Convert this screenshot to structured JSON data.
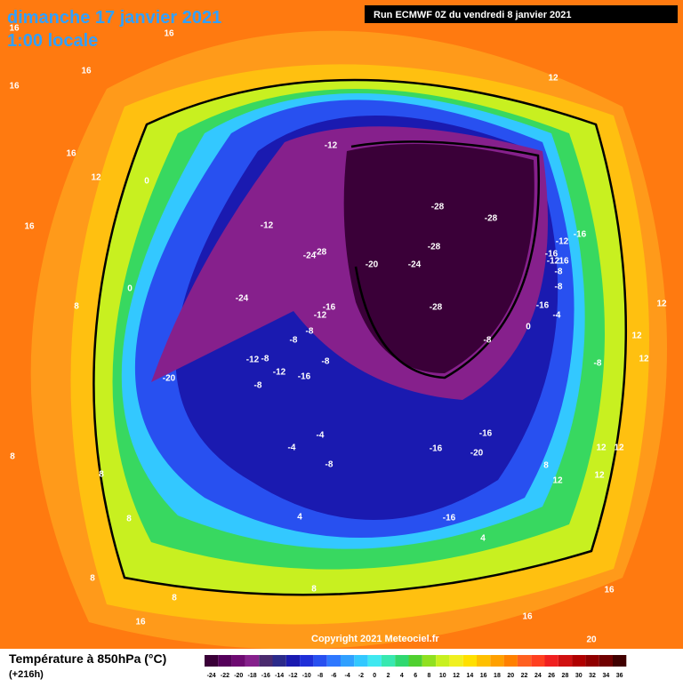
{
  "header": {
    "title": "dimanche 17 janvier 2021",
    "time": "1:00 locale",
    "run": "Run ECMWF 0Z du vendredi 8 janvier 2021"
  },
  "copyright": "Copyright 2021 Meteociel.fr",
  "footer": {
    "title": "Température à 850hPa (°C)",
    "lead": "(+216h)"
  },
  "legend": {
    "labels": [
      -24,
      -22,
      -20,
      -18,
      -16,
      -14,
      -12,
      -10,
      -8,
      -6,
      -4,
      -2,
      0,
      2,
      4,
      6,
      8,
      10,
      12,
      14,
      16,
      18,
      20,
      22,
      24,
      26,
      28,
      30,
      32,
      34,
      36
    ],
    "colors": [
      "#3a0038",
      "#55005a",
      "#6e0a72",
      "#86208c",
      "#4a2a6e",
      "#2b2a8a",
      "#1a1ab0",
      "#1f2fd8",
      "#2850f0",
      "#2f78ff",
      "#30a0ff",
      "#33c8ff",
      "#40e8f0",
      "#38e8b0",
      "#30d870",
      "#50d030",
      "#90e020",
      "#c8f020",
      "#f0f020",
      "#ffe000",
      "#ffc000",
      "#ffa000",
      "#ff8000",
      "#ff6020",
      "#ff4020",
      "#f02020",
      "#d01010",
      "#b00000",
      "#900000",
      "#700000",
      "#400000"
    ]
  },
  "contour_labels": [
    16,
    16,
    16,
    16,
    16,
    12,
    0,
    16,
    0,
    8,
    -12,
    -28,
    -28,
    -12,
    -28,
    -24,
    -28,
    -20,
    -24,
    -24,
    -16,
    -12,
    -28,
    -8,
    -8,
    -12,
    -8,
    -12,
    -8,
    -16,
    -8,
    -20,
    -8,
    -12,
    -16,
    -16,
    -12,
    16,
    -8,
    -8,
    -16,
    -4,
    0,
    -8,
    12,
    12,
    12,
    12,
    -4,
    -4,
    -8,
    -16,
    -16,
    -20,
    -16,
    8,
    8,
    4,
    8,
    8,
    8,
    16,
    16,
    16,
    12,
    12,
    12,
    20,
    8,
    12,
    4,
    8
  ]
}
